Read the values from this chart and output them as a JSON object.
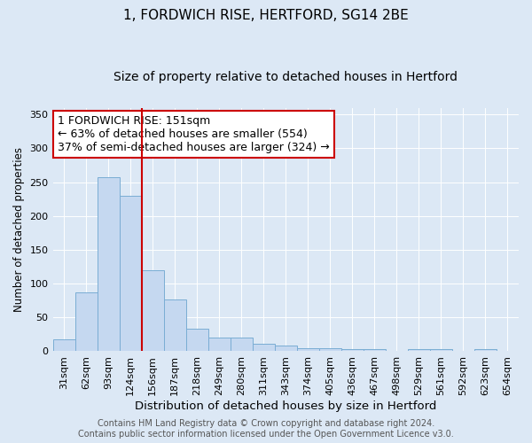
{
  "title1": "1, FORDWICH RISE, HERTFORD, SG14 2BE",
  "title2": "Size of property relative to detached houses in Hertford",
  "xlabel": "Distribution of detached houses by size in Hertford",
  "ylabel": "Number of detached properties",
  "categories": [
    "31sqm",
    "62sqm",
    "93sqm",
    "124sqm",
    "156sqm",
    "187sqm",
    "218sqm",
    "249sqm",
    "280sqm",
    "311sqm",
    "343sqm",
    "374sqm",
    "405sqm",
    "436sqm",
    "467sqm",
    "498sqm",
    "529sqm",
    "561sqm",
    "592sqm",
    "623sqm",
    "654sqm"
  ],
  "values": [
    18,
    87,
    257,
    230,
    120,
    77,
    33,
    20,
    20,
    11,
    9,
    4,
    4,
    3,
    3,
    0,
    3,
    3,
    0,
    3,
    0
  ],
  "bar_color": "#c5d8f0",
  "bar_edge_color": "#7aadd4",
  "background_color": "#dce8f5",
  "red_line_x": 4.0,
  "annotation_line1": "1 FORDWICH RISE: 151sqm",
  "annotation_line2": "← 63% of detached houses are smaller (554)",
  "annotation_line3": "37% of semi-detached houses are larger (324) →",
  "annotation_box_color": "#ffffff",
  "annotation_box_edge_color": "#cc0000",
  "ylim": [
    0,
    360
  ],
  "yticks": [
    0,
    50,
    100,
    150,
    200,
    250,
    300,
    350
  ],
  "footer_text": "Contains HM Land Registry data © Crown copyright and database right 2024.\nContains public sector information licensed under the Open Government Licence v3.0.",
  "title1_fontsize": 11,
  "title2_fontsize": 10,
  "xlabel_fontsize": 9.5,
  "ylabel_fontsize": 8.5,
  "tick_fontsize": 8,
  "annotation_fontsize": 9,
  "footer_fontsize": 7
}
